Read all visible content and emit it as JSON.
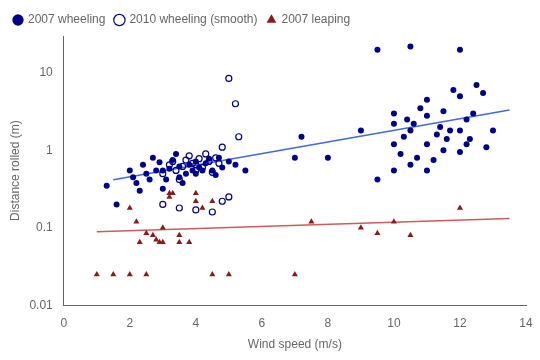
{
  "chart_data": {
    "type": "scatter",
    "xlabel": "Wind speed (m/s)",
    "ylabel": "Distance rolled (m)",
    "log": "y",
    "xlim": [
      0,
      14
    ],
    "ylim": [
      0.01,
      30
    ],
    "xticks": [
      0,
      2,
      4,
      6,
      8,
      10,
      12,
      14
    ],
    "yticks": [
      0.01,
      0.1,
      1,
      10
    ],
    "grid": false,
    "legend": "upper left",
    "series": [
      {
        "name": "2007 wheeling",
        "color": "#00008B",
        "marker": "circle",
        "x": [
          1.3,
          1.6,
          2.0,
          2.1,
          2.2,
          2.3,
          2.4,
          2.5,
          2.6,
          2.7,
          2.8,
          2.9,
          3.0,
          3.0,
          3.1,
          3.2,
          3.3,
          3.4,
          3.5,
          3.5,
          3.6,
          3.7,
          3.8,
          3.9,
          4.0,
          4.0,
          4.1,
          4.2,
          4.3,
          4.4,
          4.5,
          4.6,
          4.7,
          4.8,
          5.0,
          5.2,
          5.5,
          7.0,
          7.2,
          8.0,
          9.0,
          9.5,
          10.0,
          10.0,
          10.0,
          10.0,
          10.2,
          10.3,
          10.4,
          10.5,
          10.5,
          10.6,
          10.7,
          10.8,
          11.0,
          11.0,
          11.0,
          11.0,
          11.2,
          11.3,
          11.4,
          11.5,
          11.5,
          11.6,
          11.7,
          11.8,
          12.0,
          12.0,
          12.0,
          12.2,
          12.2,
          12.3,
          12.4,
          12.5,
          12.7,
          12.8,
          13.0,
          9.5,
          10.5,
          12.0
        ],
        "values": [
          0.35,
          0.2,
          0.55,
          0.45,
          0.38,
          0.3,
          0.65,
          0.5,
          0.42,
          0.8,
          0.55,
          0.7,
          0.32,
          0.55,
          0.42,
          0.58,
          0.75,
          0.9,
          0.45,
          0.62,
          0.38,
          0.5,
          0.65,
          0.55,
          0.5,
          0.72,
          0.6,
          0.55,
          0.68,
          0.78,
          0.55,
          0.48,
          0.8,
          0.6,
          0.72,
          0.65,
          0.55,
          0.8,
          1.5,
          0.8,
          1.8,
          0.42,
          0.55,
          1.2,
          2.2,
          3.0,
          0.9,
          1.5,
          2.5,
          0.65,
          1.8,
          2.2,
          0.8,
          3.5,
          0.55,
          1.2,
          2.8,
          4.5,
          0.75,
          1.6,
          2.0,
          1.0,
          3.2,
          1.4,
          1.8,
          6.0,
          0.95,
          1.8,
          5.0,
          1.2,
          2.5,
          1.4,
          3.0,
          7.0,
          5.5,
          1.1,
          1.8,
          20.0,
          22.0,
          20.0
        ]
      },
      {
        "name": "2010 wheeling (smooth)",
        "color": "#00008B",
        "marker": "open_circle",
        "x": [
          3.0,
          3.2,
          3.3,
          3.4,
          3.5,
          3.6,
          3.7,
          3.8,
          3.9,
          4.0,
          4.0,
          4.1,
          4.2,
          4.3,
          4.4,
          4.5,
          4.6,
          4.7,
          4.8,
          5.0,
          5.2,
          5.3,
          3.0,
          3.5,
          4.0,
          4.5,
          4.8,
          5.0
        ],
        "values": [
          0.5,
          0.65,
          0.72,
          0.55,
          0.42,
          0.62,
          0.75,
          0.85,
          0.68,
          0.55,
          0.65,
          0.78,
          0.6,
          0.9,
          0.72,
          0.52,
          0.8,
          0.68,
          1.1,
          8.5,
          4.0,
          1.5,
          0.2,
          0.18,
          0.17,
          0.16,
          0.22,
          0.25
        ]
      },
      {
        "name": "2007 leaping",
        "color": "#8B1A1A",
        "marker": "triangle",
        "x": [
          1.0,
          1.5,
          2.0,
          2.0,
          2.2,
          2.3,
          2.5,
          2.5,
          2.7,
          2.8,
          2.9,
          3.0,
          3.0,
          3.2,
          3.2,
          3.3,
          3.5,
          3.5,
          3.8,
          4.0,
          4.0,
          4.2,
          4.5,
          4.5,
          5.0,
          7.0,
          7.5,
          9.0,
          9.5,
          10.0,
          10.5,
          12.0
        ],
        "values": [
          0.025,
          0.025,
          0.18,
          0.025,
          0.12,
          0.065,
          0.025,
          0.085,
          0.08,
          0.07,
          0.065,
          0.065,
          0.1,
          0.28,
          0.25,
          0.28,
          0.08,
          0.065,
          0.065,
          0.28,
          0.22,
          0.18,
          0.025,
          0.22,
          0.025,
          0.025,
          0.12,
          0.1,
          0.085,
          0.12,
          0.08,
          0.18
        ]
      },
      {
        "type": "line",
        "color": "#4169E1",
        "line_style": "solid",
        "x": [
          1.5,
          13.5
        ],
        "values": [
          0.416869383,
          3.311311215
        ]
      },
      {
        "type": "line",
        "color": "#CD5C5C",
        "line_style": "solid",
        "x": [
          1.0,
          13.5
        ],
        "values": [
          0.089125094,
          0.131825674
        ]
      }
    ]
  }
}
